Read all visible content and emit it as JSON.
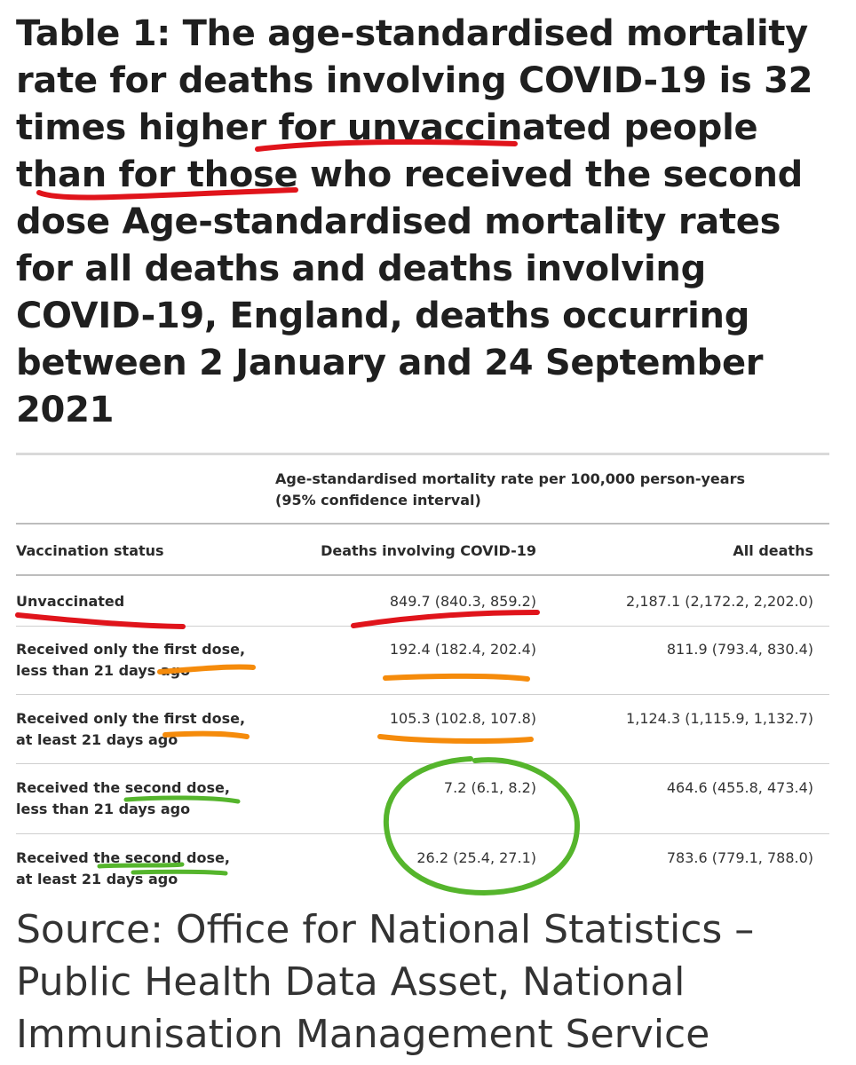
{
  "title": "Table 1: The age-standardised mortality rate for deaths involving COVID-19 is 32 times higher for unvaccinated people than for those who received the second dose Age-standardised mortality rates for all deaths and deaths involving COVID-19, England, deaths occurring between 2 January and 24 September 2021",
  "table": {
    "group_header_line1": "Age-standardised mortality rate per 100,000 person-years",
    "group_header_line2": "(95% confidence interval)",
    "columns": [
      "Vaccination status",
      "Deaths involving COVID-19",
      "All deaths"
    ],
    "rows": [
      {
        "status_line1": "Unvaccinated",
        "status_line2": "",
        "covid": "849.7 (840.3, 859.2)",
        "all": "2,187.1 (2,172.2, 2,202.0)"
      },
      {
        "status_line1": "Received only the first dose,",
        "status_line2": "less than 21 days ago",
        "covid": "192.4 (182.4, 202.4)",
        "all": "811.9 (793.4, 830.4)"
      },
      {
        "status_line1": "Received only the first dose,",
        "status_line2": "at least 21 days ago",
        "covid": "105.3 (102.8, 107.8)",
        "all": "1,124.3 (1,115.9, 1,132.7)"
      },
      {
        "status_line1": "Received the second dose,",
        "status_line2": "less than 21 days ago",
        "covid": "7.2 (6.1, 8.2)",
        "all": "464.6 (455.8, 473.4)"
      },
      {
        "status_line1": "Received the second dose,",
        "status_line2": "at least 21 days ago",
        "covid": "26.2 (25.4, 27.1)",
        "all": "783.6 (779.1, 788.0)"
      }
    ]
  },
  "source": "Source: Office for National Statistics – Public Health Data Asset, National Immunisation Management Service",
  "colors": {
    "red_ink": "#e0141b",
    "orange_ink": "#f58b0b",
    "green_ink": "#55b52c"
  }
}
